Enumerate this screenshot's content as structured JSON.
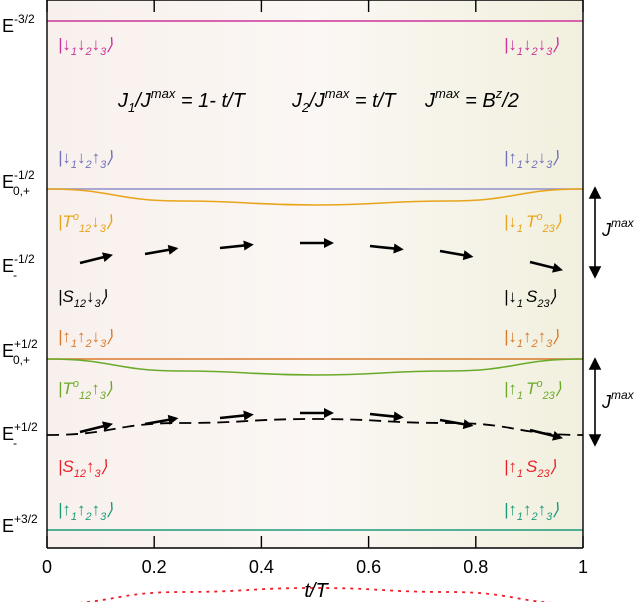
{
  "chart_data": {
    "type": "line",
    "xlabel": "t/T",
    "xlim": [
      0,
      1
    ],
    "x_ticks": [
      "0",
      "0.2",
      "0.4",
      "0.6",
      "0.8",
      "1"
    ],
    "y_levels": [
      {
        "base": "E",
        "sup": "-3/2",
        "sub": ""
      },
      {
        "base": "E",
        "sup": "-1/2",
        "sub": "0,+"
      },
      {
        "base": "E",
        "sup": "-1/2",
        "sub": "-"
      },
      {
        "base": "E",
        "sup": "+1/2",
        "sub": "0,+"
      },
      {
        "base": "E",
        "sup": "+1/2",
        "sub": "-"
      },
      {
        "base": "E",
        "sup": "+3/2",
        "sub": ""
      }
    ],
    "formula": {
      "j1": {
        "a": "J",
        "sub": "1",
        "b": "/J",
        "sup": "max",
        "c": " = 1- t/T"
      },
      "j2": {
        "a": "J",
        "sub": "2",
        "b": "/J",
        "sup": "max",
        "c": " = t/T"
      },
      "jmax": {
        "a": "J",
        "sup": "max",
        "b": " = B",
        "sup2": "z",
        "c": "/2"
      }
    },
    "gap_label": {
      "a": "J",
      "sup": "max"
    },
    "series": [
      {
        "style": "solid",
        "color": "#cc3399",
        "x": [
          0,
          1
        ],
        "y": [
          0,
          0
        ]
      },
      {
        "style": "solid",
        "color": "#9090c8",
        "x": [
          0,
          1
        ],
        "y": [
          0,
          0
        ]
      },
      {
        "style": "solid",
        "color": "#e8a41a",
        "x": [
          0,
          0.25,
          0.5,
          0.75,
          1
        ],
        "y": [
          0,
          -0.15,
          -0.2,
          -0.15,
          0
        ]
      },
      {
        "style": "dashed",
        "color": "#000000",
        "x": [
          0,
          0.25,
          0.5,
          0.75,
          1
        ],
        "y": [
          -1,
          -0.85,
          -0.8,
          -0.85,
          -1
        ]
      },
      {
        "style": "solid",
        "color": "#d97a2b",
        "x": [
          0,
          1
        ],
        "y": [
          0,
          0
        ]
      },
      {
        "style": "solid",
        "color": "#6aaa2a",
        "x": [
          0,
          0.25,
          0.5,
          0.75,
          1
        ],
        "y": [
          0,
          -0.15,
          -0.2,
          -0.15,
          0
        ]
      },
      {
        "style": "dotted",
        "color": "#e8202a",
        "x": [
          0,
          0.25,
          0.5,
          0.75,
          1
        ],
        "y": [
          -1,
          -0.85,
          -0.8,
          -0.85,
          -1
        ]
      },
      {
        "style": "solid",
        "color": "#1a9a7a",
        "x": [
          0,
          1
        ],
        "y": [
          0,
          0
        ]
      }
    ],
    "state_labels": {
      "row1": {
        "color": "#cc3399",
        "left": [
          "↓",
          "1",
          "↓",
          "2",
          "↓",
          "3"
        ],
        "right": [
          "↓",
          "1",
          "↓",
          "2",
          "↓",
          "3"
        ]
      },
      "row2": {
        "color": "#7070b8",
        "left": [
          "↓",
          "1",
          "↓",
          "2",
          "↑",
          "3"
        ],
        "right": [
          "↑",
          "1",
          "↓",
          "2",
          "↓",
          "3"
        ]
      },
      "row3": {
        "color": "#e8a41a",
        "left": {
          "T": "T",
          "o": "o",
          "sub": "12",
          "arr": "↓",
          "n": "3"
        },
        "right": {
          "arr": "↓",
          "n": "1",
          "T": "T",
          "o": "o",
          "sub": "23"
        }
      },
      "row4": {
        "color": "#000000",
        "left": {
          "S": "S",
          "sub": "12",
          "arr": "↓",
          "n": "3"
        },
        "right": {
          "arr": "↓",
          "n": "1",
          "S": "S",
          "sub": "23"
        }
      },
      "row5": {
        "color": "#d97a2b",
        "left": [
          "↑",
          "1",
          "↑",
          "2",
          "↓",
          "3"
        ],
        "right": [
          "↓",
          "1",
          "↑",
          "2",
          "↑",
          "3"
        ]
      },
      "row6": {
        "color": "#6aaa2a",
        "left": {
          "T": "T",
          "o": "o",
          "sub": "12",
          "arr": "↑",
          "n": "3"
        },
        "right": {
          "arr": "↑",
          "n": "1",
          "T": "T",
          "o": "o",
          "sub": "23"
        }
      },
      "row7": {
        "color": "#e8202a",
        "left": {
          "S": "S",
          "sub": "12",
          "arr": "↑",
          "n": "3"
        },
        "right": {
          "arr": "↑",
          "n": "1",
          "S": "S",
          "sub": "23"
        }
      },
      "row8": {
        "color": "#1a9a7a",
        "left": [
          "↑",
          "1",
          "↑",
          "2",
          "↑",
          "3"
        ],
        "right": [
          "↑",
          "1",
          "↑",
          "2",
          "↑",
          "3"
        ]
      }
    }
  }
}
